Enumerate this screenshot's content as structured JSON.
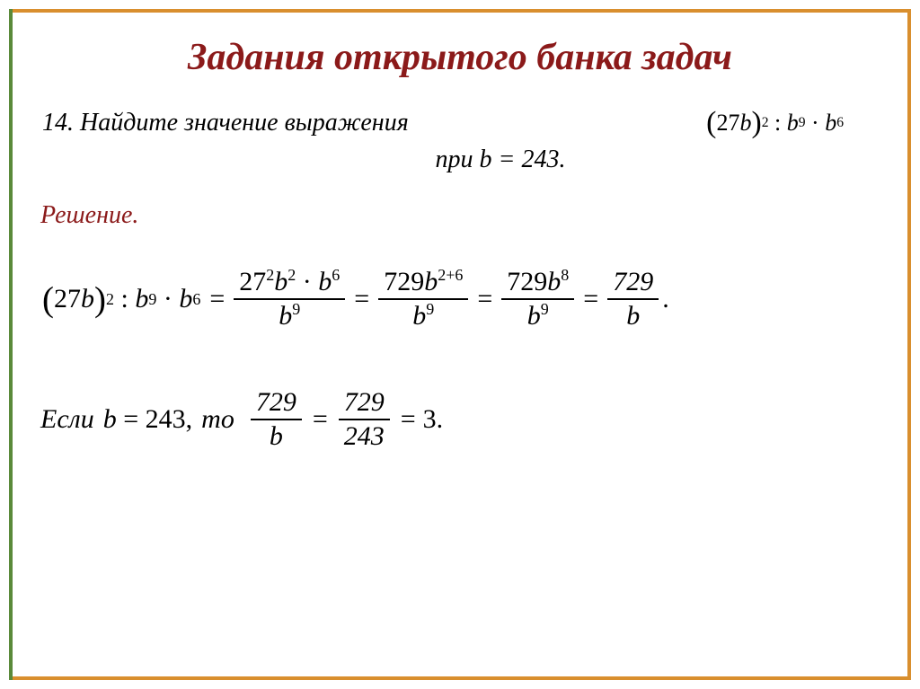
{
  "colors": {
    "frame_orange": "#d98f2e",
    "frame_green": "#5a8a3a",
    "title_color": "#8b1a1a",
    "solution_color": "#8b1a1a",
    "text_color": "#000000",
    "background": "#ffffff"
  },
  "title": "Задания открытого банка задач",
  "problem": {
    "number": "14.",
    "text_line1": "Найдите значение выражения",
    "expression": "(27b)² : b⁹ · b⁶",
    "text_line2": "при  b = 243."
  },
  "solution_label": "Решение.",
  "equation": {
    "lhs_base": "27b",
    "lhs_exp": "2",
    "lhs_div": "b",
    "lhs_div_exp": "9",
    "lhs_mul": "b",
    "lhs_mul_exp": "6",
    "step1_num": "27²b² · b⁶",
    "step1_den": "b⁹",
    "step2_num": "729b",
    "step2_num_exp": "2+6",
    "step2_den": "b⁹",
    "step3_num": "729b⁸",
    "step3_den": "b⁹",
    "step4_num": "729",
    "step4_den": "b"
  },
  "final": {
    "if_text": "Если",
    "cond": "b = 243,",
    "then_text": "то",
    "f1_num": "729",
    "f1_den": "b",
    "f2_num": "729",
    "f2_den": "243",
    "result": "3."
  },
  "typography": {
    "title_fontsize": 42,
    "body_fontsize": 28,
    "math_fontsize": 30,
    "font_family": "Georgia, serif",
    "italic": true
  }
}
